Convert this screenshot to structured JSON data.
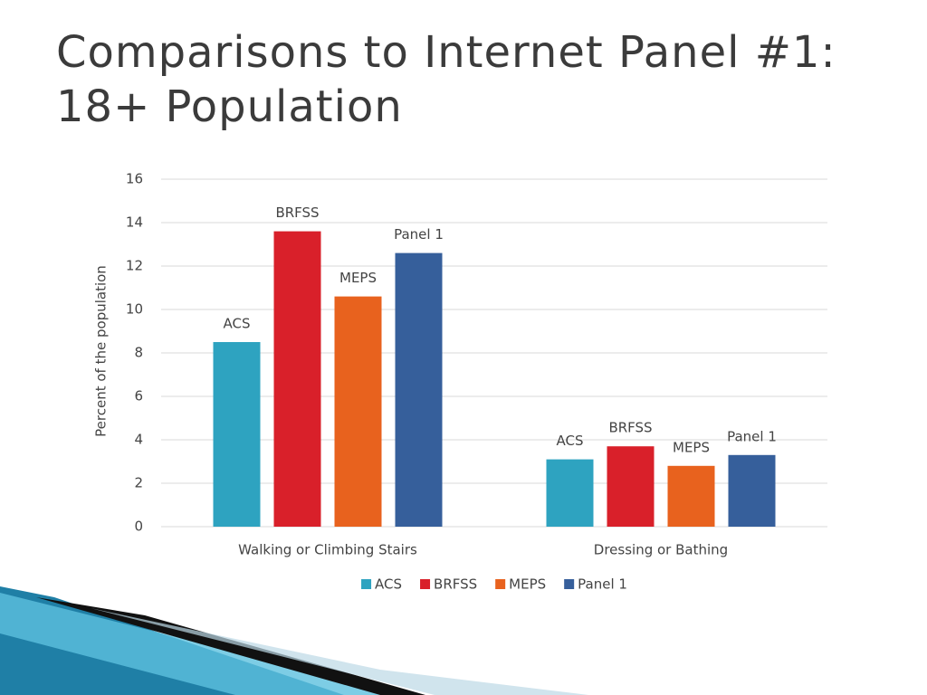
{
  "chart_data": {
    "type": "bar",
    "title": "Comparisons to Internet Panel #1: 18+ Population",
    "y_label": "Percent of the population",
    "categories": [
      "Walking or Climbing Stairs",
      "Dressing or Bathing"
    ],
    "series": [
      {
        "name": "ACS",
        "color": "#2ea3c0",
        "values": [
          8.5,
          3.1
        ]
      },
      {
        "name": "BRFSS",
        "color": "#d9202a",
        "values": [
          13.6,
          3.7
        ]
      },
      {
        "name": "MEPS",
        "color": "#e8621e",
        "values": [
          10.6,
          2.8
        ]
      },
      {
        "name": "Panel 1",
        "color": "#365f9b",
        "values": [
          12.6,
          3.3
        ]
      }
    ],
    "ylim": [
      0,
      16
    ],
    "yticks": [
      0,
      2,
      4,
      6,
      8,
      10,
      12,
      14,
      16
    ],
    "grid": true
  }
}
